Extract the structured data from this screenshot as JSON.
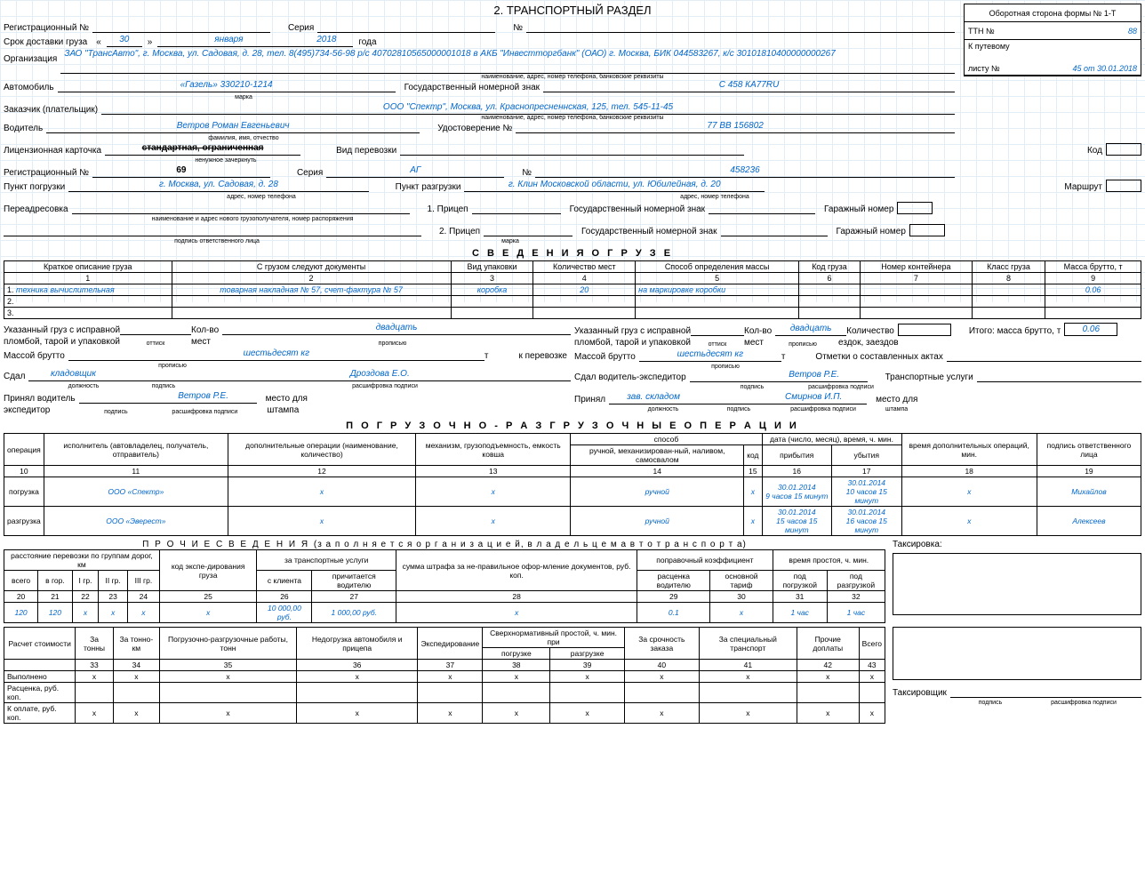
{
  "header": {
    "corner_note": "Оборотная сторона формы № 1-Т",
    "title": "2. ТРАНСПОРТНЫЙ РАЗДЕЛ",
    "ttn_label": "ТТН №",
    "ttn_value": "88",
    "waybill_label": "К путевому",
    "waybill_label2": "листу №",
    "waybill_value": "45 от 30.01.2018"
  },
  "reg1": {
    "label": "Регистрационный №",
    "series_label": "Серия",
    "num_label": "№"
  },
  "delivery": {
    "label": "Срок доставки груза",
    "day": "30",
    "month": "января",
    "year": "2018",
    "year_suffix": "года"
  },
  "org": {
    "label": "Организация",
    "value": "ЗАО \"ТрансАвто\", г. Москва, ул.  Садовая, д. 28, тел. 8(495)734-56-98 р/с 40702810565000001018 в АКБ \"Инвестторгбанк\" (ОАО) г. Москва, БИК 044583267, к/с 30101810400000000267",
    "caption": "наименование, адрес, номер телефона, банковские реквизиты"
  },
  "auto": {
    "label": "Автомобиль",
    "value": "«Газель» 330210-1214",
    "caption": "марка",
    "plate_label": "Государственный номерной знак",
    "plate_value": "С 458 КА77RU"
  },
  "customer": {
    "label": "Заказчик (плательщик)",
    "value": "ООО \"Спектр\",  Москва, ул. Краснопресненнская, 125, тел. 545-11-45",
    "caption": "наименование, адрес, номер телефона, банковские реквизиты"
  },
  "driver": {
    "label": "Водитель",
    "value": "Ветров Роман Евгеньевич",
    "caption": "фамилия, имя, отчество",
    "cert_label": "Удостоверение №",
    "cert_value": "77 ВВ 156802"
  },
  "license": {
    "label": "Лицензионная карточка",
    "value": "стандартная, ограниченная",
    "caption": "ненужное зачеркнуть",
    "transport_type_label": "Вид перевозки",
    "code_label": "Код"
  },
  "reg2": {
    "label": "Регистрационный №",
    "value": "69",
    "series_label": "Серия",
    "series_value": "АГ",
    "num_label": "№",
    "num_value": "458236"
  },
  "loading": {
    "load_label": "Пункт погрузки",
    "load_value": "г. Москва, ул.  Садовая, д. 28",
    "load_caption": "адрес, номер телефона",
    "unload_label": "Пункт разгрузки",
    "unload_value": "г. Клин Московской области, ул. Юбилейная, д. 20",
    "unload_caption": "адрес, номер телефона",
    "route_label": "Маршрут"
  },
  "redirect": {
    "label": "Переадресовка",
    "caption": "наименование и адрес нового грузополучателя, номер распоряжения",
    "sign_caption": "подпись ответственного лица",
    "trailer1_label": "1. Прицеп",
    "trailer2_label": "2. Прицеп",
    "trailer_caption": "марка",
    "plate_label": "Государственный номерной знак",
    "garage_label": "Гаражный номер"
  },
  "cargo": {
    "title": "С В Е Д Е Н И Я  О  Г Р У З Е",
    "headers": [
      "Краткое описание груза",
      "С грузом следуют документы",
      "Вид упаковки",
      "Количество мест",
      "Способ определения массы",
      "Код груза",
      "Номер контейнера",
      "Класс груза",
      "Масса брутто, т"
    ],
    "nums": [
      "1",
      "2",
      "3",
      "4",
      "5",
      "6",
      "7",
      "8",
      "9"
    ],
    "rows": [
      {
        "n": "1.",
        "desc": "техника вычислительная",
        "docs": "товарная накладная № 57, счет-фактура № 57",
        "pack": "коробка",
        "qty": "20",
        "method": "на маркировке коробки",
        "code": "",
        "cont": "",
        "class": "",
        "mass": "0.06"
      },
      {
        "n": "2.",
        "desc": "",
        "docs": "",
        "pack": "",
        "qty": "",
        "method": "",
        "code": "",
        "cont": "",
        "class": "",
        "mass": ""
      },
      {
        "n": "3.",
        "desc": "",
        "docs": "",
        "pack": "",
        "qty": "",
        "method": "",
        "code": "",
        "cont": "",
        "class": "",
        "mass": ""
      }
    ]
  },
  "seal_left": {
    "line1": "Указанный груз с исправной",
    "line2": "пломбой, тарой и упаковкой",
    "imprint": "оттиск",
    "qty_label": "Кол-во",
    "qty_label2": "мест",
    "qty_value": "двадцать",
    "qty_caption": "прописью",
    "mass_label": "Массой брутто",
    "mass_value": "шестьдесят кг",
    "mass_caption": "прописью",
    "mass_unit": "т",
    "transfer": "к перевозке",
    "handed_label": "Сдал",
    "handed_pos": "кладовщик",
    "handed_name": "Дроздова Е.О.",
    "pos_caption": "должность",
    "sign_caption": "подпись",
    "name_caption": "расшифровка подписи",
    "accepted_label": "Принял водитель",
    "accepted_label2": "экспедитор",
    "accepted_name": "Ветров Р.Е.",
    "stamp": "место для",
    "stamp2": "штампа"
  },
  "seal_right": {
    "line1": "Указанный груз с исправной",
    "line2": "пломбой, тарой и упаковкой",
    "imprint": "оттиск",
    "qty_label": "Кол-во",
    "qty_label2": "мест",
    "qty_value": "двадцать",
    "qty_caption": "прописью",
    "rides_label": "Количество",
    "rides_label2": "ездок, заездов",
    "total_label": "Итого: масса брутто, т",
    "total_value": "0.06",
    "mass_label": "Массой брутто",
    "mass_value": "шестьдесят кг",
    "mass_caption": "прописью",
    "mass_unit": "т",
    "acts_label": "Отметки о составленных актах",
    "handed_label": "Сдал водитель-экспедитор",
    "handed_name": "Ветров Р.Е.",
    "services_label": "Транспортные услуги",
    "accepted_label": "Принял",
    "accepted_pos": "зав. складом",
    "accepted_name": "Смирнов И.П.",
    "stamp": "место для",
    "stamp2": "штампа"
  },
  "ops": {
    "title": "П О Г Р У З О Ч Н О - Р А З Г Р У З О Ч Н Ы Е   О П Е Р А Ц И И",
    "headers": {
      "op": "операция",
      "exec": "исполнитель (автовладелец, получатель, отправитель)",
      "addl": "дополнительные операции (наименование, количество)",
      "mech": "механизм, грузоподъемность, емкость ковша",
      "method_group": "способ",
      "method1": "ручной, механизирован-ный, наливом, самосвалом",
      "method2": "код",
      "date_group": "дата (число, месяц), время, ч. мин.",
      "arrive": "прибытия",
      "depart": "убытия",
      "extra": "время дополнительных операций, мин.",
      "sign": "подпись ответственного лица"
    },
    "nums": [
      "10",
      "11",
      "12",
      "13",
      "14",
      "15",
      "16",
      "17",
      "18",
      "19"
    ],
    "rows": [
      {
        "op": "погрузка",
        "exec": "ООО «Спектр»",
        "addl": "х",
        "mech": "х",
        "m1": "ручной",
        "m2": "х",
        "arr": "30.01.2014\n9 часов 15 минут",
        "dep": "30.01.2014\n10 часов 15 минут",
        "extra": "х",
        "sign": "Михайлов"
      },
      {
        "op": "разгрузка",
        "exec": "ООО «Эверест»",
        "addl": "х",
        "mech": "х",
        "m1": "ручной",
        "m2": "х",
        "arr": "30.01.2014\n15 часов 15 минут",
        "dep": "30.01.2014\n16 часов 15 минут",
        "extra": "х",
        "sign": "Алексеев"
      }
    ]
  },
  "other": {
    "title": "П Р О Ч И Е  С В Е Д Е Н И Я",
    "subtitle": "(з а п о л н я е т с я  о р г а н и з а ц и е й,  в л а д е л ь ц е м  а в т о т р а н с п о р т а)",
    "dist_group": "расстояние перевозки по группам дорог, км",
    "h": {
      "all": "всего",
      "city": "в гор.",
      "g1": "I гр.",
      "g2": "II гр.",
      "g3": "III гр.",
      "code": "код экспе-дирования груза",
      "tariff": "за транспортные услуги",
      "cli": "с клиента",
      "drv": "причитается водителю",
      "fine": "сумма штрафа за не-правильное офор-мление документов, руб. коп.",
      "coef": "поправочный коэффициент",
      "rate": "расценка водителю",
      "base": "основной тариф",
      "idle": "время простоя, ч. мин.",
      "load": "под погрузкой",
      "unload": "под разгрузкой"
    },
    "nums": [
      "20",
      "21",
      "22",
      "23",
      "24",
      "25",
      "26",
      "27",
      "28",
      "29",
      "30",
      "31",
      "32"
    ],
    "vals": [
      "120",
      "120",
      "х",
      "х",
      "х",
      "х",
      "10 000,00 руб.",
      "1 000,00 руб.",
      "х",
      "0.1",
      "х",
      "1 час",
      "1 час"
    ],
    "tax_label": "Таксировка:"
  },
  "calc": {
    "label": "Расчет стоимости",
    "h": [
      "За тонны",
      "За тонно-км",
      "Погрузочно-разгрузочные работы, тонн",
      "Недогрузка автомобиля и прицепа",
      "Экспедирование",
      "Сверхнормативный простой, ч. мин. при",
      "За срочность заказа",
      "За специальный транспорт",
      "Прочие доплаты",
      "Всего"
    ],
    "sub": [
      "погрузке",
      "разгрузке"
    ],
    "nums": [
      "33",
      "34",
      "35",
      "36",
      "37",
      "38",
      "39",
      "40",
      "41",
      "42",
      "43"
    ],
    "rows": {
      "done": {
        "label": "Выполнено",
        "v": [
          "х",
          "х",
          "х",
          "х",
          "х",
          "х",
          "х",
          "х",
          "х",
          "х",
          "х"
        ]
      },
      "rate": {
        "label": "Расценка, руб. коп.",
        "v": [
          "",
          "",
          "",
          "",
          "",
          "",
          "",
          "",
          "",
          "",
          ""
        ]
      },
      "pay": {
        "label": "К оплате, руб. коп.",
        "v": [
          "х",
          "х",
          "х",
          "х",
          "х",
          "х",
          "х",
          "х",
          "х",
          "х",
          "х"
        ]
      }
    },
    "taxer_label": "Таксировщик",
    "sign_caption": "подпись",
    "name_caption": "расшифровка подписи"
  }
}
